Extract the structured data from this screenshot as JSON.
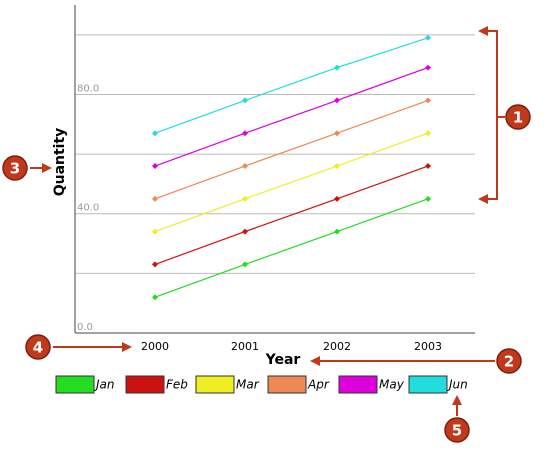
{
  "chart_data": {
    "type": "line",
    "x_label": "Year",
    "y_label": "Quantity",
    "categories": [
      "2000",
      "2001",
      "2002",
      "2003"
    ],
    "series": [
      {
        "name": "Jan",
        "color": "#22dd22",
        "values": [
          12,
          23,
          34,
          45
        ]
      },
      {
        "name": "Feb",
        "color": "#cc1111",
        "values": [
          23,
          34,
          45,
          56
        ]
      },
      {
        "name": "Mar",
        "color": "#eeee22",
        "values": [
          34,
          45,
          56,
          67
        ]
      },
      {
        "name": "Apr",
        "color": "#ee8855",
        "values": [
          45,
          56,
          67,
          78
        ]
      },
      {
        "name": "May",
        "color": "#dd00dd",
        "values": [
          56,
          67,
          78,
          89
        ]
      },
      {
        "name": "Jun",
        "color": "#22dddd",
        "values": [
          67,
          78,
          89,
          99
        ]
      }
    ],
    "ylim": [
      0,
      110
    ],
    "yticks": [
      {
        "value": 0,
        "label": "0.0"
      },
      {
        "value": 20,
        "label": null
      },
      {
        "value": 40,
        "label": "40.0"
      },
      {
        "value": 60,
        "label": null
      },
      {
        "value": 80,
        "label": "80.0"
      },
      {
        "value": 100,
        "label": null
      }
    ],
    "grid": true,
    "legend": "bottom",
    "annotations": [
      "1",
      "2",
      "3",
      "4",
      "5"
    ]
  }
}
